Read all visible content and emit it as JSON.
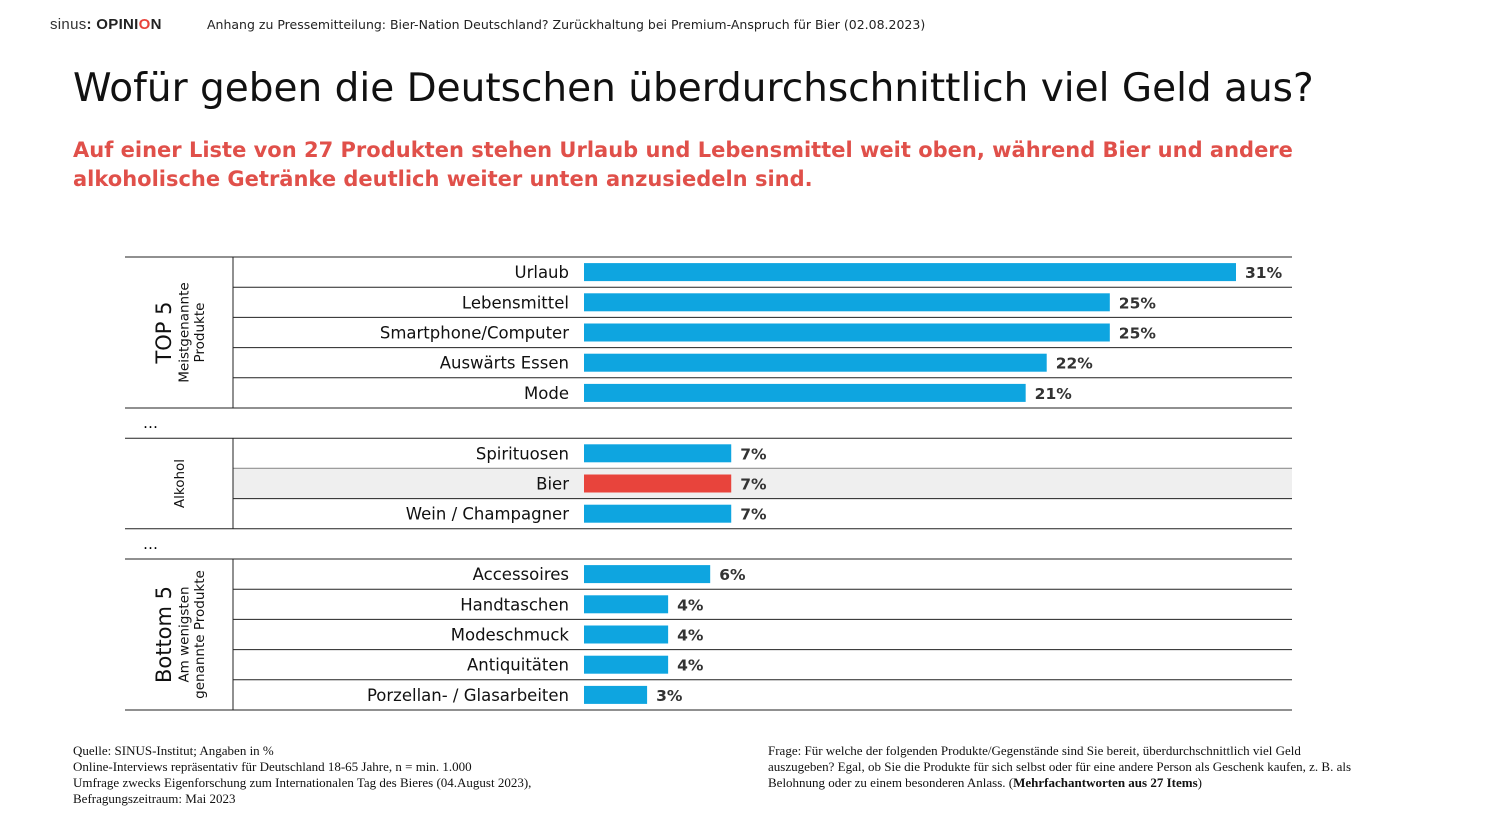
{
  "header": {
    "logo_brand": "sinus",
    "logo_sep": ":",
    "logo_word_start": " OPINI",
    "logo_word_accent": "O",
    "logo_word_end": "N",
    "press_line": "Anhang zu Pressemitteilung: Bier-Nation Deutschland? Zurückhaltung bei Premium-Anspruch für Bier (02.08.2023)"
  },
  "title": "Wofür geben die Deutschen überdurchschnittlich viel Geld aus?",
  "subtitle": "Auf einer Liste von 27 Produkten stehen Urlaub und Lebensmittel weit oben, während Bier und andere alkoholische Getränke deutlich weiter unten anzusiedeln sind.",
  "colors": {
    "bar": "#0ea5e0",
    "highlight_bar": "#e8443c",
    "highlight_row": "#efefef",
    "subtitle": "#e0504a"
  },
  "chart_data": {
    "type": "bar",
    "orientation": "horizontal",
    "unit": "%",
    "xlim": [
      0,
      31
    ],
    "groups": [
      {
        "title": "TOP 5",
        "subtitle_lines": [
          "Meistgenannte",
          "Produkte"
        ],
        "categories": [
          "Urlaub",
          "Lebensmittel",
          "Smartphone/Computer",
          "Auswärts Essen",
          "Mode"
        ],
        "values": [
          31,
          25,
          25,
          22,
          21
        ],
        "display_labels": [
          "31%",
          "25%",
          "25%",
          "22%",
          "21%"
        ]
      },
      {
        "separator": "…"
      },
      {
        "title": "",
        "subtitle_lines": [
          "Alkohol"
        ],
        "categories": [
          "Spirituosen",
          "Bier",
          "Wein / Champagner"
        ],
        "values": [
          7,
          7,
          7
        ],
        "display_labels": [
          "7%",
          "7%",
          "7%"
        ],
        "highlight": "Bier"
      },
      {
        "separator": "…"
      },
      {
        "title": "Bottom 5",
        "subtitle_lines": [
          "Am wenigsten",
          "genannte Produkte"
        ],
        "categories": [
          "Accessoires",
          "Handtaschen",
          "Modeschmuck",
          "Antiquitäten",
          "Porzellan- / Glasarbeiten"
        ],
        "values": [
          6,
          4,
          4,
          4,
          3
        ],
        "display_labels": [
          "6%",
          "4%",
          "4%",
          "4%",
          "3%"
        ]
      }
    ]
  },
  "footer": {
    "source_lines": [
      "Quelle: SINUS-Institut; Angaben in %",
      "Online-Interviews repräsentativ für Deutschland 18-65 Jahre, n = min. 1.000",
      "Umfrage zwecks Eigenforschung zum Internationalen Tag des Bieres (04.August 2023),",
      "Befragungszeitraum: Mai 2023"
    ],
    "question_lines": [
      "Frage: Für welche der folgenden Produkte/Gegenstände sind Sie bereit, überdurchschnittlich viel Geld",
      "auszugeben? Egal, ob Sie die Produkte für sich selbst oder für eine andere Person als Geschenk kaufen, z. B. als",
      "Belohnung oder zu einem besonderen Anlass. ("
    ],
    "question_bold": "Mehrfachantworten aus 27 Items",
    "question_end": ")"
  }
}
